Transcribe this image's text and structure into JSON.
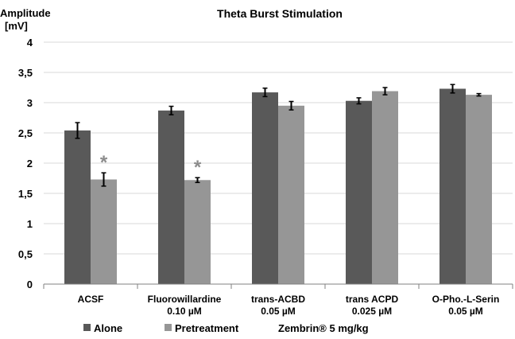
{
  "chart_data": {
    "type": "bar",
    "title": "Theta Burst Stimulation",
    "ylabel": [
      "Amplitude",
      "[mV]"
    ],
    "xlabel": "",
    "ylim": [
      0,
      4
    ],
    "yticks": [
      {
        "value": 0,
        "label": "0"
      },
      {
        "value": 0.5,
        "label": "0,5"
      },
      {
        "value": 1,
        "label": "1"
      },
      {
        "value": 1.5,
        "label": "1,5"
      },
      {
        "value": 2,
        "label": "2"
      },
      {
        "value": 2.5,
        "label": "2,5"
      },
      {
        "value": 3,
        "label": "3"
      },
      {
        "value": 3.5,
        "label": "3,5"
      },
      {
        "value": 4,
        "label": "4"
      }
    ],
    "grid": true,
    "categories": [
      {
        "line1": "ACSF",
        "line2": ""
      },
      {
        "line1": "Fluorowillardine",
        "line2": "0.10 µM"
      },
      {
        "line1": "trans-ACBD",
        "line2": "0.05 µM"
      },
      {
        "line1": "trans ACPD",
        "line2": "0.025 µM"
      },
      {
        "line1": "O-Pho.-L-Serin",
        "line2": "0.05 µM"
      }
    ],
    "series": [
      {
        "name": "Alone",
        "color": "#595959",
        "values": [
          2.54,
          2.87,
          3.17,
          3.03,
          3.23
        ],
        "errors": [
          0.13,
          0.07,
          0.07,
          0.05,
          0.07
        ]
      },
      {
        "name": "Pretreatment",
        "color": "#969696",
        "values": [
          1.73,
          1.72,
          2.95,
          3.19,
          3.13
        ],
        "errors": [
          0.11,
          0.04,
          0.07,
          0.06,
          0.02
        ]
      }
    ],
    "significance": [
      {
        "category": 0,
        "series": 1,
        "symbol": "*"
      },
      {
        "category": 1,
        "series": 1,
        "symbol": "*"
      }
    ],
    "legend": {
      "placement": "bottom-left",
      "note": "Zembrin® 5 mg/kg"
    }
  }
}
